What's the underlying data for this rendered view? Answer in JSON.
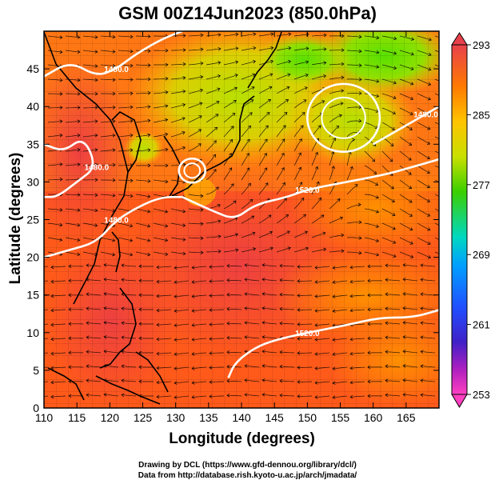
{
  "title": "GSM 00Z14Jun2023 (850.0hPa)",
  "xlabel": "Longitude (degrees)",
  "ylabel": "Latitude  (degrees)",
  "x_ticks": [
    "110",
    "115",
    "120",
    "125",
    "130",
    "135",
    "140",
    "145",
    "150",
    "155",
    "160",
    "165"
  ],
  "y_ticks": [
    "0",
    "5",
    "10",
    "15",
    "20",
    "25",
    "30",
    "35",
    "40",
    "45"
  ],
  "colorbar": {
    "labels": [
      "293",
      "285",
      "277",
      "269",
      "261",
      "253"
    ],
    "colors": [
      "#e8404a",
      "#ff7a00",
      "#ffc400",
      "#c8e000",
      "#3ccf00",
      "#00d8c0",
      "#00a0ff",
      "#2050ff",
      "#4020c8",
      "#b020c0",
      "#ff40c0"
    ]
  },
  "contours": [
    {
      "label": "1480.0",
      "points": [
        [
          110,
          44
        ],
        [
          114,
          46
        ],
        [
          118,
          44
        ],
        [
          121,
          45
        ],
        [
          124,
          47
        ],
        [
          128,
          49
        ],
        [
          131,
          50
        ]
      ]
    },
    {
      "label": "1480.0",
      "points": [
        [
          110,
          35
        ],
        [
          113,
          34
        ],
        [
          116,
          36
        ],
        [
          118,
          32
        ],
        [
          115,
          30
        ],
        [
          112,
          28
        ],
        [
          110,
          28
        ]
      ]
    },
    {
      "label": "1480.0",
      "points": [
        [
          110,
          20
        ],
        [
          114,
          21
        ],
        [
          118,
          22
        ],
        [
          121,
          25
        ],
        [
          125,
          27
        ],
        [
          128,
          28
        ],
        [
          131,
          28
        ]
      ]
    },
    {
      "label": "1520.0",
      "points": [
        [
          131,
          28
        ],
        [
          136,
          26
        ],
        [
          139,
          25
        ],
        [
          142,
          27
        ],
        [
          147,
          28
        ],
        [
          150,
          29
        ],
        [
          156,
          30
        ],
        [
          162,
          31
        ],
        [
          166,
          32
        ],
        [
          170,
          33
        ]
      ]
    },
    {
      "label": "1480.0",
      "points": [
        [
          160,
          35
        ],
        [
          164,
          37
        ],
        [
          168,
          39
        ],
        [
          170,
          40
        ]
      ]
    },
    {
      "label": "1520.0",
      "points": [
        [
          138,
          4
        ],
        [
          139,
          6
        ],
        [
          142,
          8
        ],
        [
          145,
          9
        ],
        [
          150,
          10
        ],
        [
          156,
          11
        ],
        [
          161,
          12
        ],
        [
          166,
          12
        ],
        [
          170,
          13
        ]
      ]
    }
  ],
  "closed_contours": [
    {
      "label": "",
      "center": [
        132.5,
        31.5
      ],
      "rx": 2.0,
      "ry": 1.6
    },
    {
      "label": "",
      "center": [
        155.5,
        38.5
      ],
      "rx": 5.5,
      "ry": 4.5
    }
  ],
  "credits": [
    "Drawing by DCL (https://www.gfd-dennou.org/library/dcl/)",
    "Data from http://database.rish.kyoto-u.ac.jp/arch/jmadata/"
  ]
}
